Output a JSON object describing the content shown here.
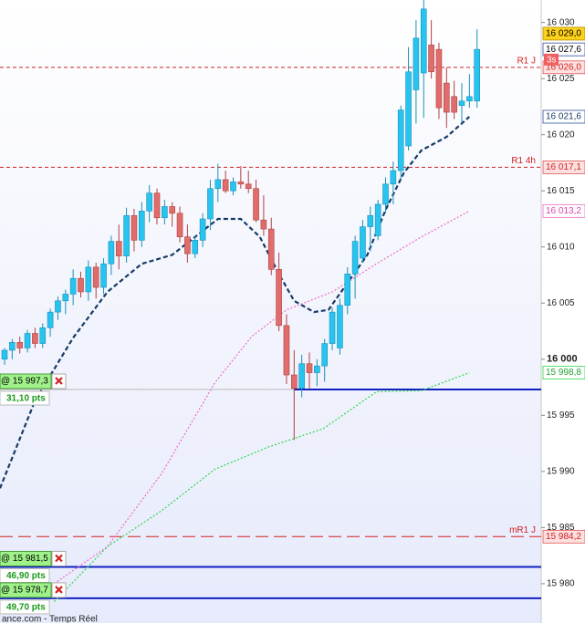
{
  "chart_data": {
    "type": "candlestick",
    "ylim": [
      15976.5,
      16032
    ],
    "yticks": [
      {
        "value": 16030,
        "label": "16 030"
      },
      {
        "value": 16025,
        "label": "16 025"
      },
      {
        "value": 16020,
        "label": "16 020"
      },
      {
        "value": 16015,
        "label": "16 015"
      },
      {
        "value": 16010,
        "label": "16 010"
      },
      {
        "value": 16005,
        "label": "16 005"
      },
      {
        "value": 16000,
        "label": "16 000"
      },
      {
        "value": 15995,
        "label": "15 995"
      },
      {
        "value": 15990,
        "label": "15 990"
      },
      {
        "value": 15985,
        "label": "15 985"
      },
      {
        "value": 15980,
        "label": "15 980"
      }
    ],
    "up_color": "#27c4f0",
    "down_color": "#e06c6c",
    "ohlc": [
      [
        16000.0,
        16001.0,
        15999.5,
        16000.8
      ],
      [
        16000.8,
        16001.8,
        16000.0,
        16001.5
      ],
      [
        16001.5,
        16002.0,
        16000.5,
        16001.0
      ],
      [
        16001.0,
        16002.6,
        16000.6,
        16002.3
      ],
      [
        16002.3,
        16002.8,
        16001.0,
        16001.4
      ],
      [
        16001.4,
        16003.2,
        16001.0,
        16002.8
      ],
      [
        16002.8,
        16004.5,
        16002.0,
        16004.2
      ],
      [
        16004.2,
        16005.6,
        16003.5,
        16005.2
      ],
      [
        16005.2,
        16006.2,
        16004.0,
        16005.8
      ],
      [
        16005.8,
        16008.0,
        16004.8,
        16007.2
      ],
      [
        16007.2,
        16007.8,
        16005.5,
        16006.0
      ],
      [
        16006.0,
        16008.8,
        16005.2,
        16008.2
      ],
      [
        16008.2,
        16008.6,
        16005.4,
        16006.4
      ],
      [
        16006.4,
        16009.0,
        16005.8,
        16008.5
      ],
      [
        16008.5,
        16011.0,
        16007.5,
        16010.5
      ],
      [
        16010.5,
        16012.0,
        16008.0,
        16009.2
      ],
      [
        16009.2,
        16013.5,
        16008.6,
        16012.8
      ],
      [
        16012.8,
        16013.4,
        16009.6,
        16010.6
      ],
      [
        16010.6,
        16014.0,
        16010.0,
        16013.2
      ],
      [
        16013.2,
        16015.5,
        16012.2,
        16014.8
      ],
      [
        16014.8,
        16015.2,
        16012.0,
        16012.6
      ],
      [
        16012.6,
        16014.2,
        16012.0,
        16013.6
      ],
      [
        16013.6,
        16014.0,
        16011.8,
        16013.0
      ],
      [
        16013.0,
        16013.6,
        16010.4,
        16010.9
      ],
      [
        16010.9,
        16012.0,
        16008.6,
        16009.4
      ],
      [
        16009.4,
        16011.0,
        16009.0,
        16010.6
      ],
      [
        16010.6,
        16013.0,
        16010.0,
        16012.5
      ],
      [
        16012.5,
        16016.0,
        16011.5,
        16015.2
      ],
      [
        16015.2,
        16017.4,
        16014.0,
        16016.0
      ],
      [
        16016.0,
        16016.8,
        16014.8,
        16015.0
      ],
      [
        16015.0,
        16016.2,
        16014.6,
        16015.8
      ],
      [
        16015.8,
        16017.2,
        16015.2,
        16015.6
      ],
      [
        16015.6,
        16016.8,
        16014.8,
        16015.2
      ],
      [
        16015.2,
        16016.0,
        16012.2,
        16012.4
      ],
      [
        16012.4,
        16014.6,
        16011.0,
        16011.6
      ],
      [
        16011.6,
        16012.6,
        16007.5,
        16008.0
      ],
      [
        16008.0,
        16009.5,
        16002.5,
        16003.0
      ],
      [
        16003.0,
        16004.0,
        15997.8,
        15998.6
      ],
      [
        15998.6,
        16000.8,
        15992.8,
        15997.4
      ],
      [
        15997.4,
        16000.4,
        15996.6,
        15999.6
      ],
      [
        15999.6,
        16000.6,
        15997.4,
        15998.8
      ],
      [
        15998.8,
        16000.0,
        15997.6,
        15999.4
      ],
      [
        15999.4,
        16001.8,
        15998.0,
        16001.4
      ],
      [
        16001.4,
        16004.6,
        16000.8,
        16004.2
      ],
      [
        16001.0,
        16005.4,
        16000.4,
        16004.8
      ],
      [
        16004.8,
        16008.2,
        16004.0,
        16007.6
      ],
      [
        16007.6,
        16011.0,
        16005.4,
        16010.5
      ],
      [
        16009.0,
        16012.4,
        16008.6,
        16011.8
      ],
      [
        16011.8,
        16013.6,
        16009.6,
        16012.8
      ],
      [
        16011.0,
        16014.2,
        16010.6,
        16013.8
      ],
      [
        16013.8,
        16016.2,
        16013.0,
        16015.6
      ],
      [
        16015.6,
        16017.6,
        16013.8,
        16016.8
      ],
      [
        16016.8,
        16022.6,
        16016.0,
        16022.2
      ],
      [
        16019.0,
        16027.8,
        16018.6,
        16025.6
      ],
      [
        16024.0,
        16030.2,
        16021.0,
        16028.6
      ],
      [
        16025.5,
        16032.0,
        16021.5,
        16031.2
      ],
      [
        16028.0,
        16030.2,
        16025.0,
        16025.6
      ],
      [
        16027.6,
        16028.2,
        16021.4,
        16022.4
      ],
      [
        16024.6,
        16026.0,
        16020.6,
        16022.0
      ],
      [
        16023.4,
        16024.8,
        16021.4,
        16022.0
      ],
      [
        16022.6,
        16024.6,
        16021.0,
        16023.0
      ],
      [
        16023.0,
        16025.4,
        16022.4,
        16023.4
      ],
      [
        16023.0,
        16029.4,
        16022.4,
        16027.6
      ]
    ],
    "lines": [
      {
        "color": "#163a66",
        "style": "dashed",
        "width": 2.2,
        "x": [
          -0.6,
          4,
          9,
          13.5,
          18,
          22,
          25,
          28,
          31,
          33.5,
          36,
          38,
          40.6,
          42.5,
          45,
          47.6,
          50,
          52.4,
          54.7,
          58,
          61
        ],
        "values": [
          15988.5,
          15996.3,
          16001.9,
          16006.0,
          16008.5,
          16009.3,
          16010.9,
          16012.5,
          16012.5,
          16010.9,
          16007.6,
          16005.2,
          16004.2,
          16004.4,
          16006.8,
          16009.3,
          16013.3,
          16016.6,
          16018.6,
          16019.8,
          16021.6
        ]
      },
      {
        "color": "#f06ac8",
        "style": "dotted",
        "width": 1.2,
        "x": [
          6.5,
          13.5,
          20.6,
          27.6,
          32.4,
          37,
          43,
          48.8,
          54.7,
          61
        ],
        "values": [
          15980.0,
          15983.3,
          15989.8,
          15997.9,
          16002.0,
          16004.4,
          16006.0,
          16008.5,
          16010.9,
          16013.2
        ]
      },
      {
        "color": "#2fd84a",
        "style": "dotted",
        "width": 1.2,
        "x": [
          6.5,
          13.5,
          20.6,
          27.6,
          34.7,
          41.8,
          48.8,
          54.7,
          61
        ],
        "values": [
          15978.4,
          15983.3,
          15986.5,
          15990.2,
          15992.2,
          15993.8,
          15997.1,
          15997.2,
          15998.8
        ]
      }
    ],
    "levels": [
      {
        "value": 16026.0,
        "label": "R1 J",
        "tag": "16 026,0",
        "color": "#d42020",
        "dash": "4,3"
      },
      {
        "value": 16017.1,
        "label": "R1 4h",
        "tag": "16 017,1",
        "color": "#d42020",
        "dash": "4,3"
      },
      {
        "value": 15984.2,
        "label": "mR1 J",
        "tag": "15 984,2",
        "color": "#d42020",
        "dash": "14,6"
      }
    ],
    "orders": [
      {
        "value": 15997.3,
        "label": "@ 15 997,3",
        "pts": "31,10 pts",
        "start": 38
      },
      {
        "value": 15981.5,
        "label": "@ 15 981,5",
        "pts": "46,90 pts",
        "start": -1
      },
      {
        "value": 15978.7,
        "label": "@ 15 978,7",
        "pts": "49,70 pts",
        "start": -1
      }
    ],
    "price_tags": [
      {
        "value": 16029.0,
        "label": "16 029,0",
        "bg": "#ffd21a",
        "fg": "#000000",
        "border": "#b08a00"
      },
      {
        "value": 16027.6,
        "label": "16 027,6",
        "bg": "#ffffff",
        "fg": "#000000",
        "border": "#3050a0"
      },
      {
        "value": 16021.6,
        "label": "16 021,6",
        "bg": "#ffffff",
        "fg": "#163a66",
        "border": "#3050a0"
      },
      {
        "value": 16013.2,
        "label": "16 013,2",
        "bg": "#ffffff",
        "fg": "#e040b0",
        "border": "#f06ac8"
      },
      {
        "value": 15998.8,
        "label": "15 998,8",
        "bg": "#ffffff",
        "fg": "#20a030",
        "border": "#2fd84a"
      }
    ],
    "timer": "3s",
    "footer": "ance.com - Temps Réel"
  }
}
